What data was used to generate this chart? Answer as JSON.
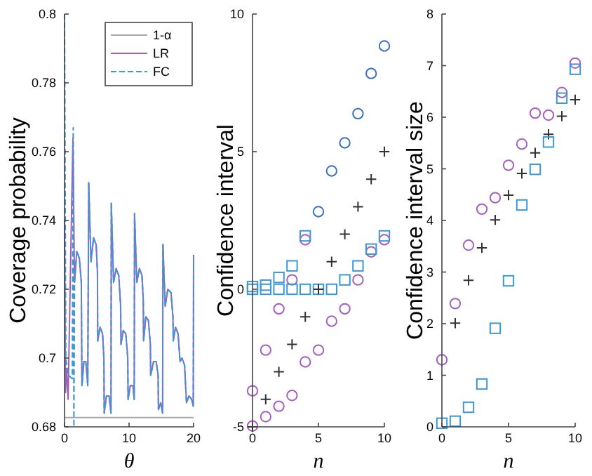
{
  "chart_data": [
    {
      "type": "line",
      "xlabel": "θ",
      "ylabel": "Coverage probability",
      "xlim": [
        0,
        20
      ],
      "xticks": [
        0,
        10,
        20
      ],
      "ylim": [
        0.68,
        0.8
      ],
      "yticks": [
        0.68,
        0.7,
        0.72,
        0.74,
        0.76,
        0.78,
        0.8
      ],
      "legend": "top right",
      "grid": false,
      "series": [
        {
          "name": "1-α",
          "color": "#a6a6a6",
          "line_style": "solid",
          "x": [
            0,
            20
          ],
          "values": [
            0.6827,
            0.6827
          ]
        },
        {
          "name": "LR",
          "color": "#9a62b8",
          "line_style": "solid",
          "x": [
            0,
            0.15,
            0.3,
            0.55,
            1.3,
            1.55,
            1.9,
            2.3,
            2.6,
            2.7,
            3.0,
            3.3,
            3.6,
            3.75,
            4.1,
            4.5,
            4.9,
            5.1,
            5.15,
            5.5,
            5.9,
            6.1,
            6.15,
            6.5,
            6.9,
            7.2,
            7.25,
            7.6,
            8.0,
            8.4,
            8.7,
            8.75,
            9.1,
            9.5,
            9.8,
            9.85,
            10.2,
            10.6,
            10.8,
            10.85,
            11.2,
            11.6,
            12.0,
            12.2,
            12.25,
            12.6,
            13.0,
            13.3,
            13.35,
            13.8,
            14.2,
            14.5,
            14.55,
            14.9,
            15.2,
            15.25,
            15.6,
            16.0,
            16.5,
            16.8,
            16.85,
            17.2,
            17.6,
            17.9,
            18.2,
            18.6,
            18.9,
            19.3,
            19.7,
            19.95,
            20
          ],
          "values": [
            0.74,
            0.69,
            0.697,
            0.688,
            0.764,
            0.722,
            0.731,
            0.729,
            0.722,
            0.692,
            0.699,
            0.699,
            0.692,
            0.751,
            0.728,
            0.735,
            0.733,
            0.725,
            0.705,
            0.709,
            0.707,
            0.7,
            0.684,
            0.689,
            0.689,
            0.684,
            0.745,
            0.722,
            0.726,
            0.724,
            0.715,
            0.704,
            0.708,
            0.707,
            0.7,
            0.688,
            0.692,
            0.692,
            0.688,
            0.742,
            0.722,
            0.726,
            0.724,
            0.717,
            0.705,
            0.712,
            0.711,
            0.704,
            0.695,
            0.699,
            0.699,
            0.695,
            0.685,
            0.687,
            0.684,
            0.733,
            0.715,
            0.72,
            0.719,
            0.712,
            0.705,
            0.709,
            0.707,
            0.699,
            0.7,
            0.698,
            0.687,
            0.689,
            0.688,
            0.686,
            0.73
          ]
        },
        {
          "name": "FC",
          "color": "#3d97d6",
          "line_style": "dashed",
          "x": [
            0,
            0.2,
            0.6,
            1.2,
            1.35,
            1.45,
            1.55,
            1.9,
            2.3,
            2.6,
            2.7,
            3.0,
            3.3,
            3.6,
            3.75,
            4.1,
            4.5,
            4.9,
            5.1,
            5.15,
            5.5,
            5.9,
            6.1,
            6.15,
            6.5,
            6.9,
            7.2,
            7.25,
            7.6,
            8.0,
            8.4,
            8.7,
            8.75,
            9.1,
            9.5,
            9.8,
            9.85,
            10.2,
            10.6,
            10.8,
            10.85,
            11.2,
            11.6,
            12.0,
            12.2,
            12.25,
            12.6,
            13.0,
            13.3,
            13.35,
            13.8,
            14.2,
            14.5,
            14.55,
            14.9,
            15.2,
            15.25,
            15.6,
            16.0,
            16.5,
            16.8,
            16.85,
            17.2,
            17.6,
            17.9,
            18.2,
            18.6,
            18.9,
            19.3,
            19.7,
            19.95,
            20
          ],
          "values": [
            0.8,
            0.7,
            0.695,
            0.694,
            0.767,
            0.68,
            0.722,
            0.731,
            0.729,
            0.722,
            0.692,
            0.699,
            0.699,
            0.692,
            0.751,
            0.728,
            0.735,
            0.733,
            0.725,
            0.705,
            0.709,
            0.707,
            0.7,
            0.684,
            0.689,
            0.689,
            0.684,
            0.745,
            0.722,
            0.726,
            0.724,
            0.715,
            0.704,
            0.708,
            0.707,
            0.7,
            0.688,
            0.692,
            0.692,
            0.688,
            0.742,
            0.722,
            0.726,
            0.724,
            0.717,
            0.705,
            0.712,
            0.711,
            0.704,
            0.695,
            0.699,
            0.699,
            0.695,
            0.685,
            0.687,
            0.684,
            0.733,
            0.715,
            0.72,
            0.719,
            0.712,
            0.705,
            0.709,
            0.707,
            0.699,
            0.7,
            0.698,
            0.687,
            0.689,
            0.688,
            0.686,
            0.73
          ]
        }
      ]
    },
    {
      "type": "scatter",
      "xlabel": "n",
      "ylabel": "Confidence interval",
      "x": [
        0,
        1,
        2,
        3,
        4,
        5,
        6,
        7,
        8,
        9,
        10
      ],
      "xlim": [
        0,
        10
      ],
      "xticks": [
        0,
        5,
        10
      ],
      "ylim": [
        -5,
        10
      ],
      "yticks": [
        -5,
        0,
        5,
        10
      ],
      "grid": false,
      "legend": false,
      "series": [
        {
          "color": "#a65fc0",
          "marker": "circle",
          "values": [
            -4.97,
            -4.63,
            -4.25,
            -3.86,
            -2.64,
            -2.21,
            -1.16,
            -0.71,
            0.34,
            1.36,
            1.8
          ]
        },
        {
          "colors": [
            "#a65fc0",
            "#a65fc0",
            "#a65fc0",
            "#a65fc0",
            "#a65fc0",
            "#3a70c8",
            "#3a70c8",
            "#3a70c8",
            "#3a70c8",
            "#3a70c8",
            "#3a70c8"
          ],
          "marker": "circle",
          "values": [
            -3.69,
            -2.21,
            -0.71,
            0.34,
            1.8,
            2.82,
            4.3,
            5.32,
            6.38,
            7.84,
            8.84
          ]
        },
        {
          "color": "#3d97d6",
          "marker": "square",
          "values": [
            0,
            0,
            0,
            0,
            0,
            0,
            0,
            0.34,
            0.85,
            1.46,
            1.94
          ]
        },
        {
          "color": "#3d97d6",
          "marker": "square",
          "values": [
            0.1,
            0.15,
            0.43,
            0.85,
            1.94,
            null,
            null,
            null,
            null,
            null,
            null
          ]
        },
        {
          "color": "#333333",
          "marker": "cross",
          "values": [
            -5,
            -4,
            -3,
            -2,
            -1,
            0,
            1,
            2,
            3,
            4,
            5
          ]
        }
      ]
    },
    {
      "type": "scatter",
      "xlabel": "n",
      "ylabel": "Confidence interval size",
      "x": [
        0,
        1,
        2,
        3,
        4,
        5,
        6,
        7,
        8,
        9,
        10
      ],
      "xlim": [
        0,
        10
      ],
      "xticks": [
        0,
        5,
        10
      ],
      "ylim": [
        0,
        8
      ],
      "yticks": [
        0,
        1,
        2,
        3,
        4,
        5,
        6,
        7,
        8
      ],
      "grid": false,
      "legend": false,
      "series": [
        {
          "color": "#a65fc0",
          "marker": "circle",
          "values": [
            1.3,
            2.39,
            3.52,
            4.22,
            4.44,
            5.07,
            5.48,
            6.08,
            6.04,
            6.48,
            7.05
          ]
        },
        {
          "color": "#333333",
          "marker": "cross",
          "values": [
            null,
            2.01,
            2.84,
            3.47,
            4.01,
            4.49,
            4.91,
            5.31,
            5.67,
            6.02,
            6.34
          ]
        },
        {
          "color": "#3d97d6",
          "marker": "square",
          "values": [
            0.07,
            0.11,
            0.38,
            0.83,
            1.91,
            2.83,
            4.3,
            4.99,
            5.52,
            6.37,
            6.93
          ]
        }
      ]
    }
  ]
}
